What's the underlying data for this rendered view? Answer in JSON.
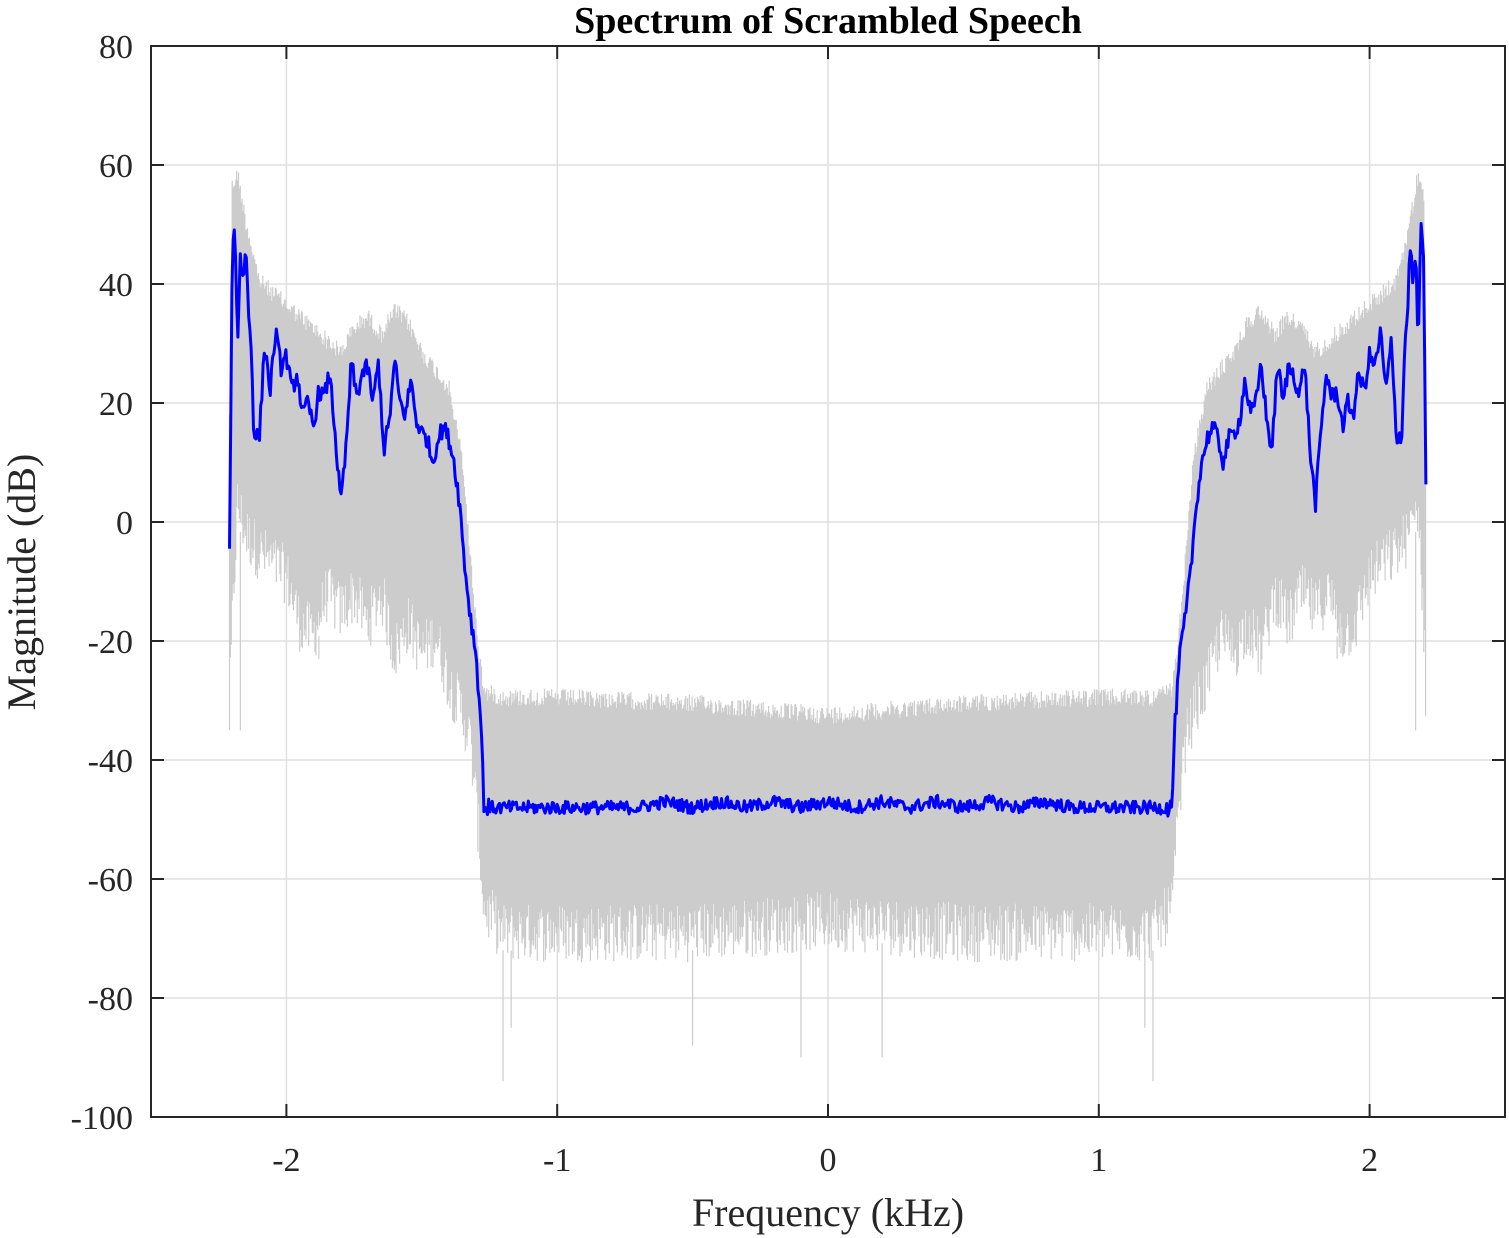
{
  "chart_data": {
    "type": "line",
    "title": "Spectrum of Scrambled Speech",
    "xlabel": "Frequency (kHz)",
    "ylabel": "Magnitude (dB)",
    "xlim": [
      -2.5,
      2.5
    ],
    "ylim": [
      -100,
      80
    ],
    "xticks": [
      -2,
      -1,
      0,
      1,
      2
    ],
    "yticks": [
      80,
      60,
      40,
      20,
      0,
      -20,
      -40,
      -60,
      -80,
      -100
    ],
    "xtick_labels": [
      "-2",
      "-1",
      "0",
      "1",
      "2"
    ],
    "ytick_labels": [
      "80",
      "60",
      "40",
      "20",
      "0",
      "-20",
      "-40",
      "-60",
      "-80",
      "-100"
    ],
    "grid": true,
    "series": [
      {
        "role": "raw-spectrum",
        "color": "#cccccc",
        "envelope_x": [
          -2.21,
          -2.2,
          -2.18,
          -2.15,
          -2.1,
          -2.05,
          -2.0,
          -1.95,
          -1.9,
          -1.85,
          -1.8,
          -1.75,
          -1.7,
          -1.65,
          -1.6,
          -1.55,
          -1.5,
          -1.45,
          -1.4,
          -1.35,
          -1.32,
          -1.29,
          -1.27,
          -1.2,
          -1.0,
          -0.5,
          0.0,
          0.5,
          1.0,
          1.2,
          1.27,
          1.29,
          1.32,
          1.35,
          1.4,
          1.45,
          1.5,
          1.55,
          1.6,
          1.65,
          1.7,
          1.75,
          1.8,
          1.85,
          1.9,
          1.95,
          2.0,
          2.05,
          2.1,
          2.15,
          2.18,
          2.2,
          2.21
        ],
        "upper": [
          20,
          58,
          60,
          52,
          42,
          40,
          38,
          36,
          34,
          32,
          30,
          34,
          36,
          33,
          37,
          35,
          30,
          27,
          24,
          12,
          -5,
          -20,
          -27,
          -28,
          -28,
          -29,
          -31,
          -29,
          -28,
          -28,
          -27,
          -20,
          -5,
          12,
          24,
          27,
          30,
          35,
          37,
          33,
          36,
          34,
          30,
          32,
          34,
          36,
          38,
          40,
          42,
          52,
          60,
          58,
          20
        ],
        "lower": [
          -36,
          -20,
          0,
          -5,
          -8,
          -10,
          -12,
          -20,
          -22,
          -15,
          -18,
          -15,
          -20,
          -15,
          -25,
          -20,
          -25,
          -22,
          -30,
          -35,
          -40,
          -55,
          -68,
          -72,
          -72,
          -72,
          -70,
          -72,
          -72,
          -72,
          -68,
          -55,
          -40,
          -35,
          -30,
          -22,
          -25,
          -20,
          -25,
          -15,
          -20,
          -15,
          -18,
          -15,
          -22,
          -20,
          -12,
          -10,
          -8,
          -5,
          0,
          -20,
          -36
        ],
        "min_spikes": [
          [
            -2.21,
            -36
          ],
          [
            -2.17,
            -35
          ],
          [
            -1.88,
            -23
          ],
          [
            -1.2,
            -94
          ],
          [
            -1.17,
            -85
          ],
          [
            -0.5,
            -88
          ],
          [
            -0.1,
            -90
          ],
          [
            0.2,
            -90
          ],
          [
            1.17,
            -85
          ],
          [
            1.2,
            -94
          ],
          [
            1.88,
            -23
          ],
          [
            2.17,
            -35
          ],
          [
            2.21,
            -36
          ]
        ]
      },
      {
        "role": "smoothed-spectrum",
        "color": "#0000ff",
        "x": [
          -2.21,
          -2.2,
          -2.19,
          -2.18,
          -2.17,
          -2.16,
          -2.15,
          -2.14,
          -2.13,
          -2.12,
          -2.1,
          -2.08,
          -2.06,
          -2.04,
          -2.02,
          -2.0,
          -1.98,
          -1.96,
          -1.94,
          -1.92,
          -1.9,
          -1.88,
          -1.86,
          -1.84,
          -1.82,
          -1.8,
          -1.78,
          -1.76,
          -1.74,
          -1.72,
          -1.7,
          -1.68,
          -1.66,
          -1.64,
          -1.62,
          -1.6,
          -1.58,
          -1.56,
          -1.54,
          -1.52,
          -1.5,
          -1.48,
          -1.46,
          -1.44,
          -1.42,
          -1.4,
          -1.38,
          -1.36,
          -1.34,
          -1.32,
          -1.3,
          -1.28,
          -1.27,
          -1.25,
          -1.2,
          -1.1,
          -1.0,
          -0.9,
          -0.8,
          -0.7,
          -0.6,
          -0.5,
          -0.4,
          -0.3,
          -0.2,
          -0.1,
          0.0,
          0.1,
          0.2,
          0.3,
          0.4,
          0.5,
          0.6,
          0.7,
          0.8,
          0.9,
          1.0,
          1.1,
          1.2,
          1.25,
          1.27,
          1.28,
          1.3,
          1.32,
          1.34,
          1.36,
          1.38,
          1.4,
          1.42,
          1.44,
          1.46,
          1.48,
          1.5,
          1.52,
          1.54,
          1.56,
          1.58,
          1.6,
          1.62,
          1.64,
          1.66,
          1.68,
          1.7,
          1.72,
          1.74,
          1.76,
          1.78,
          1.8,
          1.82,
          1.84,
          1.86,
          1.88,
          1.9,
          1.92,
          1.94,
          1.96,
          1.98,
          2.0,
          2.02,
          2.04,
          2.06,
          2.08,
          2.1,
          2.12,
          2.13,
          2.14,
          2.15,
          2.16,
          2.17,
          2.18,
          2.19,
          2.2,
          2.21
        ],
        "y": [
          -5,
          45,
          50,
          30,
          45,
          40,
          47,
          35,
          30,
          15,
          14,
          30,
          22,
          32,
          26,
          28,
          22,
          25,
          18,
          20,
          16,
          22,
          21,
          25,
          15,
          3,
          12,
          27,
          21,
          25,
          26,
          20,
          27,
          12,
          17,
          27,
          20,
          18,
          24,
          17,
          15,
          14,
          10,
          14,
          16,
          14,
          10,
          3,
          -8,
          -16,
          -22,
          -35,
          -48,
          -48,
          -48,
          -48,
          -48,
          -48,
          -48,
          -48,
          -47,
          -48,
          -47,
          -48,
          -47,
          -48,
          -47,
          -48,
          -47,
          -48,
          -47,
          -48,
          -47,
          -48,
          -47,
          -48,
          -48,
          -48,
          -48,
          -48,
          -48,
          -35,
          -22,
          -16,
          -8,
          3,
          10,
          14,
          16,
          14,
          10,
          14,
          15,
          17,
          24,
          18,
          20,
          27,
          17,
          12,
          27,
          20,
          26,
          25,
          21,
          27,
          12,
          3,
          15,
          25,
          21,
          22,
          16,
          20,
          18,
          25,
          22,
          28,
          26,
          32,
          22,
          30,
          14,
          15,
          30,
          35,
          47,
          40,
          45,
          30,
          50,
          45,
          -5
        ]
      }
    ]
  }
}
